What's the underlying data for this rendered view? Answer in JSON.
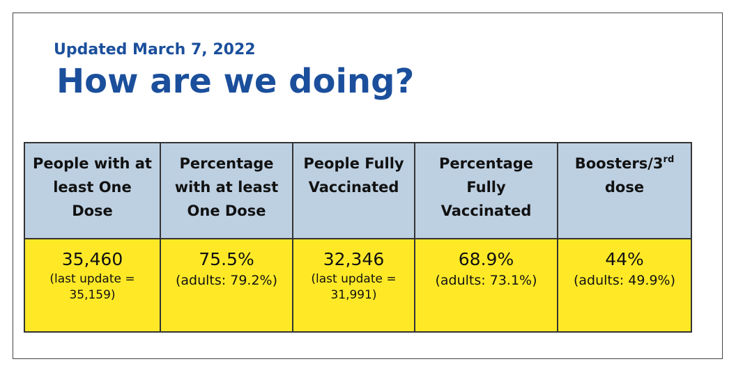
{
  "updated_text": "Updated March 7, 2022",
  "title": "How are we doing?",
  "table": {
    "headers": [
      {
        "label": "People with at least One Dose"
      },
      {
        "label": "Percentage with at least One Dose"
      },
      {
        "label": "People Fully Vaccinated"
      },
      {
        "label": "Percentage Fully Vaccinated"
      },
      {
        "label": "Boosters/3",
        "sup": "rd",
        "after": " dose"
      }
    ],
    "cells": [
      {
        "value": "35,460",
        "note": "(last update = 35,159)"
      },
      {
        "value": "75.5%",
        "note": "(adults: 79.2%)"
      },
      {
        "value": "32,346",
        "note": "(last update = 31,991)"
      },
      {
        "value": "68.9%",
        "note": "(adults: 73.1%)"
      },
      {
        "value": "44%",
        "note": "(adults: 49.9%)"
      }
    ]
  },
  "colors": {
    "title_blue": "#1b4f9c",
    "header_fill": "#bdd0e2",
    "value_fill": "#ffe927"
  }
}
